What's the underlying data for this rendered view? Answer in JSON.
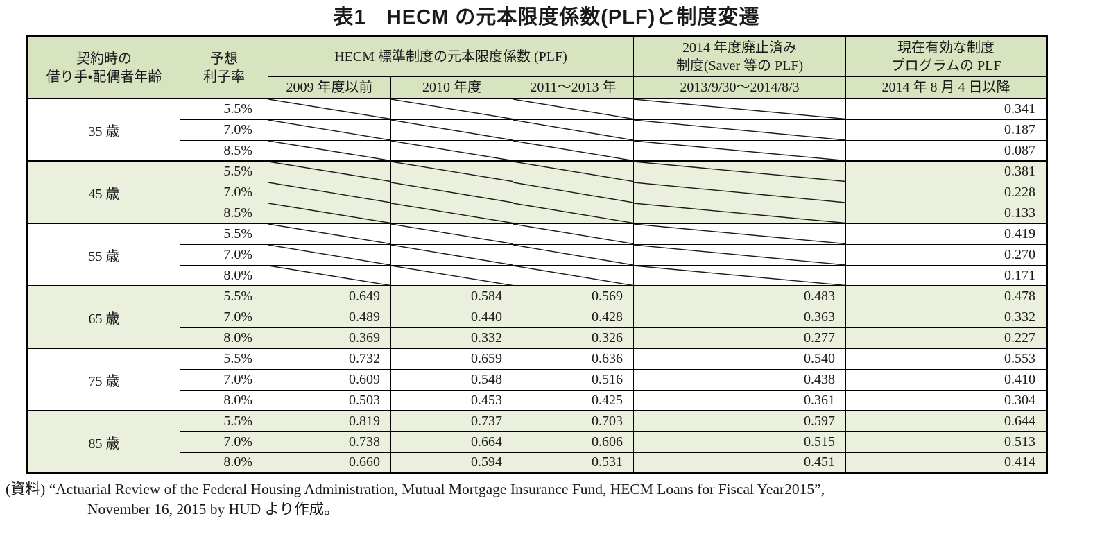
{
  "title": "表1　HECM の元本限度係数(PLF)と制度変遷",
  "colors": {
    "header_bg": "#d8e3c0",
    "band_bg": "#eaf0dc",
    "border": "#000000",
    "text": "#1a1a1a",
    "page_bg": "#ffffff"
  },
  "table": {
    "col_headers": {
      "age": "契約時の\n借り手・配偶者年齢",
      "rate": "予想\n利子率",
      "group_standard": "HECM 標準制度の元本限度係数 (PLF)",
      "group_saver": "2014 年度廃止済み\n制度(Saver 等の PLF)",
      "group_current": "現在有効な制度\nプログラムの PLF",
      "sub_2009": "2009 年度以前",
      "sub_2010": "2010 年度",
      "sub_2011": "2011～2013 年",
      "sub_2013": "2013/9/30～2014/8/3",
      "sub_2014": "2014 年 8 月 4 日以降"
    },
    "bands": [
      {
        "age": "35 歳",
        "shaded": false,
        "rows": [
          {
            "rate": "5.5%",
            "values": [
              null,
              null,
              null,
              null,
              "0.341"
            ]
          },
          {
            "rate": "7.0%",
            "values": [
              null,
              null,
              null,
              null,
              "0.187"
            ]
          },
          {
            "rate": "8.5%",
            "values": [
              null,
              null,
              null,
              null,
              "0.087"
            ]
          }
        ]
      },
      {
        "age": "45 歳",
        "shaded": true,
        "rows": [
          {
            "rate": "5.5%",
            "values": [
              null,
              null,
              null,
              null,
              "0.381"
            ]
          },
          {
            "rate": "7.0%",
            "values": [
              null,
              null,
              null,
              null,
              "0.228"
            ]
          },
          {
            "rate": "8.5%",
            "values": [
              null,
              null,
              null,
              null,
              "0.133"
            ]
          }
        ]
      },
      {
        "age": "55 歳",
        "shaded": false,
        "rows": [
          {
            "rate": "5.5%",
            "values": [
              null,
              null,
              null,
              null,
              "0.419"
            ]
          },
          {
            "rate": "7.0%",
            "values": [
              null,
              null,
              null,
              null,
              "0.270"
            ]
          },
          {
            "rate": "8.0%",
            "values": [
              null,
              null,
              null,
              null,
              "0.171"
            ]
          }
        ]
      },
      {
        "age": "65 歳",
        "shaded": true,
        "rows": [
          {
            "rate": "5.5%",
            "values": [
              "0.649",
              "0.584",
              "0.569",
              "0.483",
              "0.478"
            ]
          },
          {
            "rate": "7.0%",
            "values": [
              "0.489",
              "0.440",
              "0.428",
              "0.363",
              "0.332"
            ]
          },
          {
            "rate": "8.0%",
            "values": [
              "0.369",
              "0.332",
              "0.326",
              "0.277",
              "0.227"
            ]
          }
        ]
      },
      {
        "age": "75 歳",
        "shaded": false,
        "rows": [
          {
            "rate": "5.5%",
            "values": [
              "0.732",
              "0.659",
              "0.636",
              "0.540",
              "0.553"
            ]
          },
          {
            "rate": "7.0%",
            "values": [
              "0.609",
              "0.548",
              "0.516",
              "0.438",
              "0.410"
            ]
          },
          {
            "rate": "8.0%",
            "values": [
              "0.503",
              "0.453",
              "0.425",
              "0.361",
              "0.304"
            ]
          }
        ]
      },
      {
        "age": "85 歳",
        "shaded": true,
        "rows": [
          {
            "rate": "5.5%",
            "values": [
              "0.819",
              "0.737",
              "0.703",
              "0.597",
              "0.644"
            ]
          },
          {
            "rate": "7.0%",
            "values": [
              "0.738",
              "0.664",
              "0.606",
              "0.515",
              "0.513"
            ]
          },
          {
            "rate": "8.0%",
            "values": [
              "0.660",
              "0.594",
              "0.531",
              "0.451",
              "0.414"
            ]
          }
        ]
      }
    ]
  },
  "footer": {
    "line1": "(資料) “Actuarial Review of the Federal Housing Administration, Mutual Mortgage Insurance Fund, HECM Loans for Fiscal Year2015”,",
    "line2": "November 16, 2015 by HUD より作成。"
  }
}
